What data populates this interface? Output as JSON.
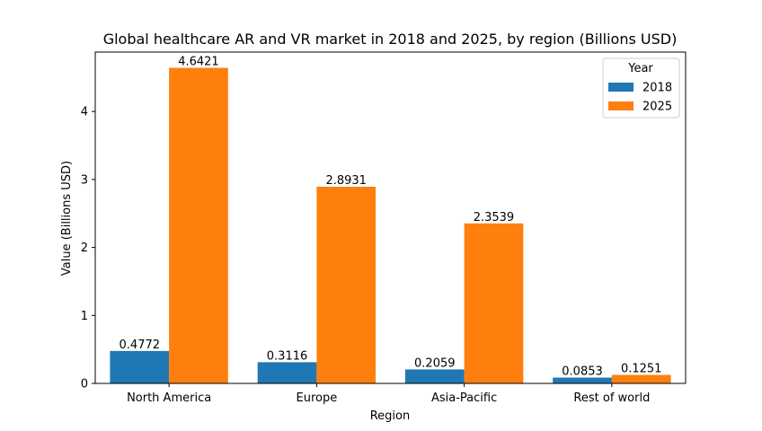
{
  "chart_data": {
    "type": "bar",
    "title": "Global healthcare AR and VR market in 2018 and 2025, by region (Billions USD)",
    "xlabel": "Region",
    "ylabel": "Value (Billions USD)",
    "categories": [
      "North America",
      "Europe",
      "Asia-Pacific",
      "Rest of world"
    ],
    "series": [
      {
        "name": "2018",
        "color": "#1f77b4",
        "values": [
          0.4772,
          0.3116,
          0.2059,
          0.0853
        ],
        "labels": [
          "0.4772",
          "0.3116",
          "0.2059",
          "0.0853"
        ]
      },
      {
        "name": "2025",
        "color": "#ff7f0e",
        "values": [
          4.6421,
          2.8931,
          2.3539,
          0.1251
        ],
        "labels": [
          "4.6421",
          "2.8931",
          "2.3539",
          "0.1251"
        ]
      }
    ],
    "ylim": [
      0,
      4.874
    ],
    "yticks": [
      0,
      1,
      2,
      3,
      4
    ],
    "ytick_labels": [
      "0",
      "1",
      "2",
      "3",
      "4"
    ],
    "legend": {
      "title": "Year",
      "position": "top-right"
    },
    "grid": false
  }
}
